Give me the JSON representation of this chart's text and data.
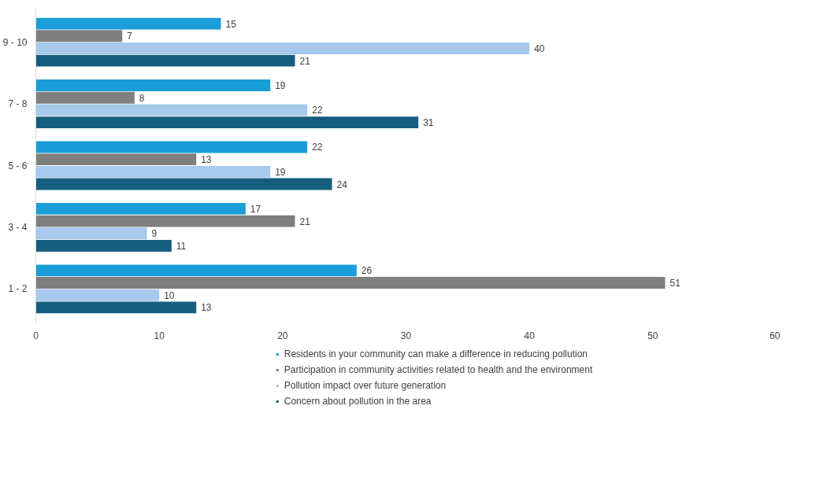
{
  "chart_data": {
    "type": "bar",
    "orientation": "horizontal",
    "categories": [
      "9 - 10",
      "7 - 8",
      "5 - 6",
      "3 - 4",
      "1 - 2"
    ],
    "series": [
      {
        "name": "Residents in your community can make a difference in reducing pollution",
        "color": "#1a9ed8",
        "values": [
          15,
          19,
          22,
          17,
          26
        ]
      },
      {
        "name": "Participation in community activities related to health and the environment",
        "color": "#7f7f7f",
        "values": [
          7,
          8,
          13,
          21,
          51
        ]
      },
      {
        "name": "Pollution impact over future generation",
        "color": "#a6c9ec",
        "values": [
          40,
          22,
          19,
          9,
          10
        ]
      },
      {
        "name": "Concern about pollution in the area",
        "color": "#155e7d",
        "values": [
          21,
          31,
          24,
          11,
          13
        ]
      }
    ],
    "xlim": [
      0,
      60
    ],
    "xticks": [
      0,
      10,
      20,
      30,
      40,
      50,
      60
    ],
    "data_labels": true,
    "grid": false,
    "legend": "bottom"
  }
}
